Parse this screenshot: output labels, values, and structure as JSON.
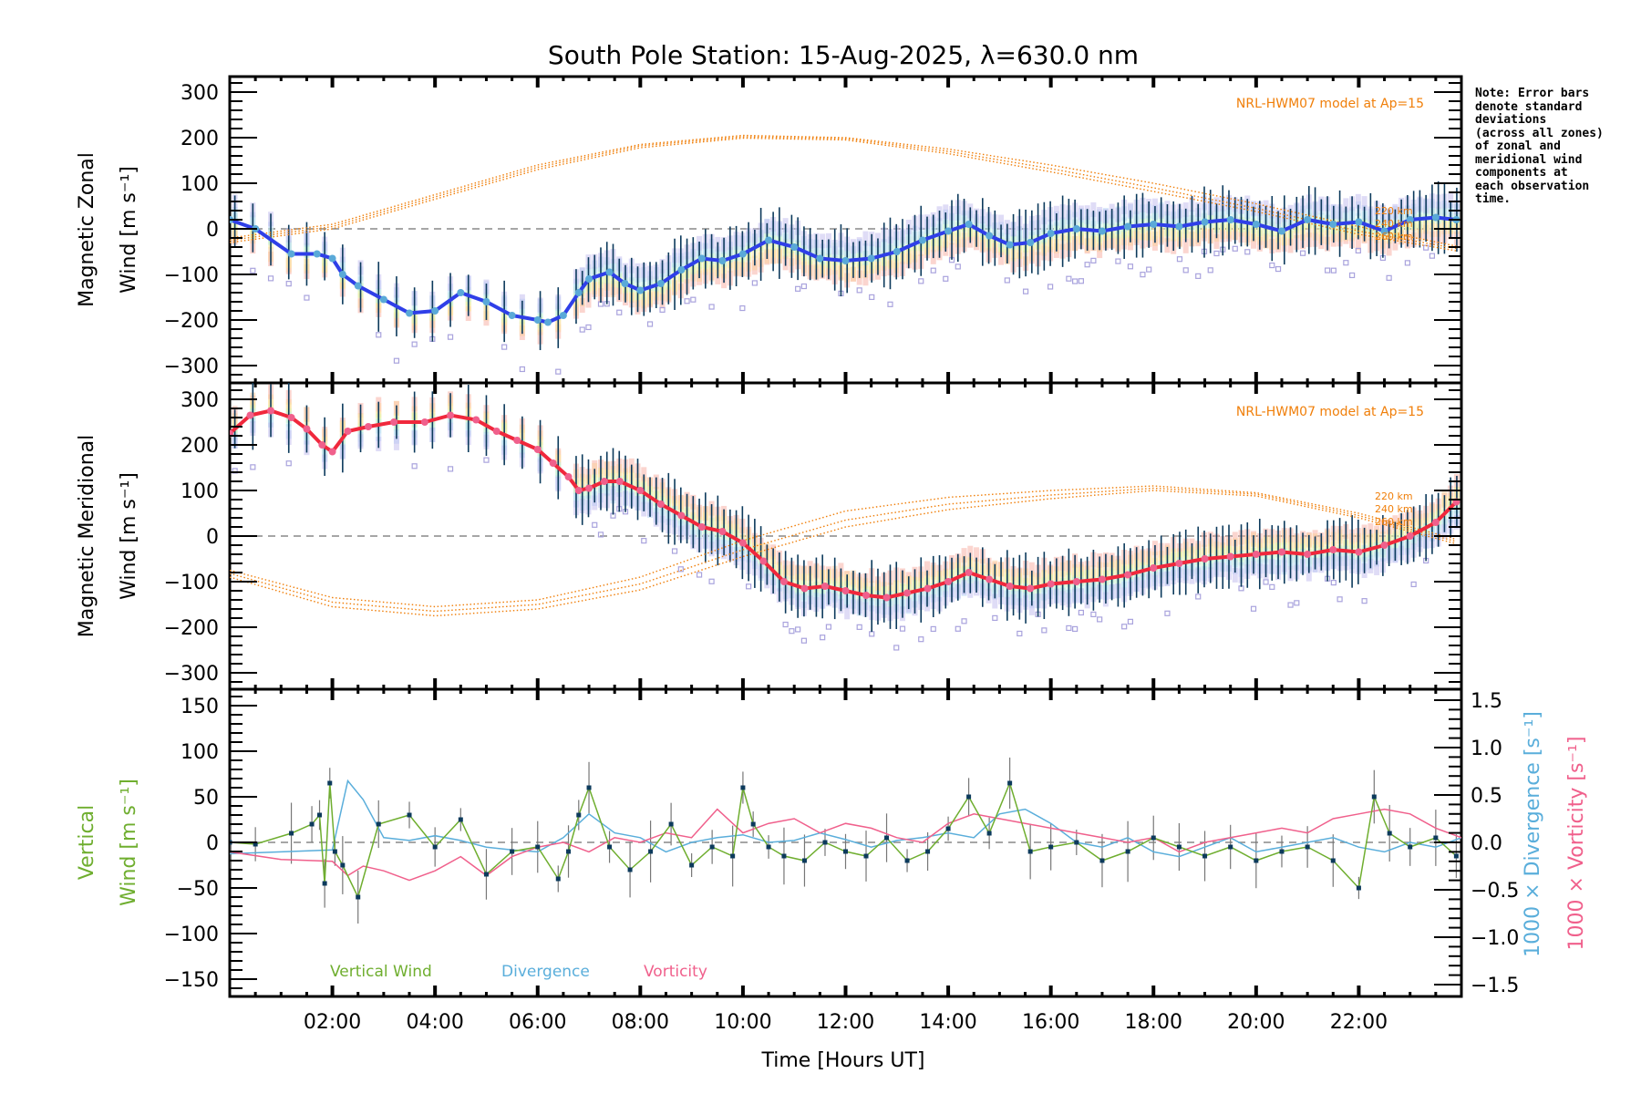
{
  "chart_data": [
    {
      "type": "line",
      "panel": "zonal",
      "title": "South Pole Station: 15-Aug-2025, λ=630.0 nm",
      "ylabel_line1": "Magnetic Zonal",
      "ylabel_line2": "Wind [m s⁻¹]",
      "ylim": [
        -335,
        335
      ],
      "yticks": [
        -300,
        -200,
        -100,
        0,
        100,
        200,
        300
      ],
      "model_label": "NRL-HWM07 model at Ap=15",
      "model_heights": [
        "220 km",
        "240 km",
        "260 km"
      ],
      "series": [
        {
          "name": "Zonal wind (mean)",
          "color": "#2f3fe8",
          "marker_color": "#5aa9d8",
          "x": [
            0.0,
            0.5,
            1.2,
            1.7,
            2.0,
            2.2,
            2.5,
            3.0,
            3.5,
            4.0,
            4.5,
            5.0,
            5.5,
            6.0,
            6.2,
            6.5,
            6.8,
            7.0,
            7.4,
            7.7,
            8.0,
            8.4,
            8.8,
            9.2,
            9.6,
            10.0,
            10.5,
            11.0,
            11.5,
            12.0,
            12.5,
            13.0,
            13.5,
            14.0,
            14.4,
            14.8,
            15.2,
            15.6,
            16.0,
            16.5,
            17.0,
            17.5,
            18.0,
            18.5,
            19.0,
            19.5,
            20.0,
            20.5,
            21.0,
            21.5,
            22.0,
            22.5,
            23.0,
            23.5,
            23.9
          ],
          "y": [
            20,
            0,
            -55,
            -55,
            -65,
            -100,
            -125,
            -155,
            -185,
            -180,
            -140,
            -160,
            -190,
            -200,
            -205,
            -190,
            -140,
            -110,
            -95,
            -120,
            -135,
            -120,
            -90,
            -65,
            -70,
            -55,
            -25,
            -40,
            -65,
            -70,
            -65,
            -50,
            -25,
            -5,
            10,
            -15,
            -35,
            -30,
            -10,
            0,
            -5,
            5,
            10,
            5,
            15,
            20,
            10,
            -5,
            20,
            10,
            15,
            -5,
            20,
            25,
            20
          ]
        },
        {
          "name": "HWM07 220 km",
          "color": "#f07f0a",
          "style": "dotted",
          "x": [
            0,
            2,
            4,
            6,
            8,
            10,
            12,
            14,
            16,
            18,
            20,
            22,
            24
          ],
          "y": [
            -20,
            10,
            75,
            140,
            185,
            205,
            200,
            175,
            140,
            100,
            55,
            5,
            -40
          ]
        },
        {
          "name": "HWM07 240 km",
          "color": "#f07f0a",
          "style": "dotted",
          "x": [
            0,
            2,
            4,
            6,
            8,
            10,
            12,
            14,
            16,
            18,
            20,
            22,
            24
          ],
          "y": [
            -25,
            5,
            70,
            135,
            182,
            202,
            198,
            170,
            132,
            90,
            45,
            -5,
            -45
          ]
        },
        {
          "name": "HWM07 260 km",
          "color": "#f07f0a",
          "style": "dotted",
          "x": [
            0,
            2,
            4,
            6,
            8,
            10,
            12,
            14,
            16,
            18,
            20,
            22,
            24
          ],
          "y": [
            -30,
            0,
            65,
            130,
            178,
            199,
            195,
            165,
            125,
            82,
            38,
            -12,
            -50
          ]
        }
      ]
    },
    {
      "type": "line",
      "panel": "meridional",
      "ylabel_line1": "Magnetic Meridional",
      "ylabel_line2": "Wind [m s⁻¹]",
      "ylim": [
        -335,
        335
      ],
      "yticks": [
        -300,
        -200,
        -100,
        0,
        100,
        200,
        300
      ],
      "model_label": "NRL-HWM07 model at Ap=15",
      "model_heights": [
        "220 km",
        "240 km",
        "260 km"
      ],
      "series": [
        {
          "name": "Meridional wind (mean)",
          "color": "#f0283c",
          "marker_color": "#f0608c",
          "x": [
            0.0,
            0.4,
            0.8,
            1.2,
            1.5,
            1.8,
            2.0,
            2.3,
            2.7,
            3.2,
            3.8,
            4.3,
            4.8,
            5.2,
            5.6,
            6.0,
            6.3,
            6.6,
            6.8,
            7.0,
            7.3,
            7.6,
            8.0,
            8.4,
            8.8,
            9.2,
            9.6,
            10.0,
            10.4,
            10.8,
            11.2,
            11.6,
            12.0,
            12.4,
            12.8,
            13.2,
            13.6,
            14.0,
            14.4,
            14.8,
            15.2,
            15.6,
            16.0,
            16.5,
            17.0,
            17.5,
            18.0,
            18.5,
            19.0,
            19.5,
            20.0,
            20.5,
            21.0,
            21.5,
            22.0,
            22.5,
            23.0,
            23.5,
            23.9
          ],
          "y": [
            225,
            265,
            275,
            260,
            235,
            200,
            185,
            230,
            240,
            250,
            250,
            265,
            255,
            230,
            210,
            190,
            160,
            130,
            100,
            105,
            120,
            120,
            100,
            70,
            45,
            20,
            10,
            -15,
            -55,
            -100,
            -115,
            -110,
            -120,
            -130,
            -135,
            -125,
            -115,
            -100,
            -80,
            -95,
            -110,
            -115,
            -105,
            -100,
            -95,
            -85,
            -70,
            -60,
            -50,
            -45,
            -40,
            -35,
            -40,
            -30,
            -35,
            -20,
            0,
            30,
            75
          ]
        },
        {
          "name": "HWM07 220 km",
          "color": "#f07f0a",
          "style": "dotted",
          "x": [
            0,
            2,
            4,
            6,
            8,
            10,
            12,
            14,
            16,
            18,
            20,
            22,
            24
          ],
          "y": [
            -75,
            -135,
            -155,
            -140,
            -90,
            -10,
            55,
            85,
            100,
            110,
            95,
            50,
            -10
          ]
        },
        {
          "name": "HWM07 240 km",
          "color": "#f07f0a",
          "style": "dotted",
          "x": [
            0,
            2,
            4,
            6,
            8,
            10,
            12,
            14,
            16,
            18,
            20,
            22,
            24
          ],
          "y": [
            -82,
            -145,
            -165,
            -150,
            -105,
            -30,
            35,
            70,
            90,
            105,
            92,
            45,
            -15
          ]
        },
        {
          "name": "HWM07 260 km",
          "color": "#f07f0a",
          "style": "dotted",
          "x": [
            0,
            2,
            4,
            6,
            8,
            10,
            12,
            14,
            16,
            18,
            20,
            22,
            24
          ],
          "y": [
            -90,
            -155,
            -175,
            -160,
            -118,
            -45,
            20,
            58,
            82,
            100,
            88,
            40,
            -20
          ]
        }
      ]
    },
    {
      "type": "line",
      "panel": "vertical",
      "xlabel": "Time [Hours UT]",
      "xticks": [
        "02:00",
        "04:00",
        "06:00",
        "08:00",
        "10:00",
        "12:00",
        "14:00",
        "16:00",
        "18:00",
        "20:00",
        "22:00"
      ],
      "xlim": [
        0,
        24
      ],
      "ylabel_line1": "Vertical",
      "ylabel_line2": "Wind [m s⁻¹]",
      "ylim": [
        -168,
        168
      ],
      "yticks": [
        -150,
        -100,
        -50,
        0,
        50,
        100,
        150
      ],
      "y2label_div": "1000 × Divergence [s⁻¹]",
      "y2label_vort": "1000 × Vorticity [s⁻¹]",
      "y2lim": [
        -1.6,
        1.6
      ],
      "y2ticks": [
        "−1.5",
        "−1.0",
        "−0.5",
        "0.0",
        "0.5",
        "1.0",
        "1.5"
      ],
      "y2tick_values": [
        -1.5,
        -1.0,
        -0.5,
        0.0,
        0.5,
        1.0,
        1.5
      ],
      "legend": [
        "Vertical Wind",
        "Divergence",
        "Vorticity"
      ],
      "series": [
        {
          "name": "Vertical Wind",
          "color": "#6fae2f",
          "axis": "left",
          "x": [
            0.0,
            0.5,
            1.2,
            1.6,
            1.75,
            1.85,
            1.95,
            2.05,
            2.2,
            2.5,
            2.9,
            3.5,
            4.0,
            4.5,
            5.0,
            5.5,
            6.0,
            6.4,
            6.6,
            6.8,
            7.0,
            7.4,
            7.8,
            8.2,
            8.6,
            9.0,
            9.4,
            9.8,
            10.0,
            10.2,
            10.5,
            10.8,
            11.2,
            11.6,
            12.0,
            12.4,
            12.8,
            13.2,
            13.6,
            14.0,
            14.4,
            14.8,
            15.2,
            15.6,
            16.0,
            16.5,
            17.0,
            17.5,
            18.0,
            18.5,
            19.0,
            19.5,
            20.0,
            20.5,
            21.0,
            21.5,
            22.0,
            22.3,
            22.6,
            23.0,
            23.5,
            23.9
          ],
          "y": [
            0,
            -2,
            10,
            20,
            30,
            -45,
            65,
            -10,
            -25,
            -60,
            20,
            30,
            -5,
            25,
            -35,
            -10,
            -5,
            -40,
            -10,
            30,
            60,
            -5,
            -30,
            -10,
            20,
            -25,
            -5,
            -15,
            60,
            20,
            -5,
            -15,
            -20,
            0,
            -10,
            -15,
            5,
            -20,
            -10,
            15,
            50,
            10,
            65,
            -10,
            -5,
            0,
            -20,
            -10,
            5,
            -5,
            -15,
            -5,
            -20,
            -10,
            -5,
            -20,
            -50,
            50,
            10,
            -5,
            5,
            -15
          ]
        },
        {
          "name": "Divergence",
          "color": "#5aaedb",
          "axis": "right",
          "x": [
            0,
            1.0,
            2.0,
            2.3,
            2.6,
            3.0,
            3.5,
            4.0,
            4.5,
            5.0,
            5.5,
            6.0,
            6.5,
            7.0,
            7.5,
            8.0,
            8.5,
            9.0,
            9.5,
            10.0,
            10.5,
            11.0,
            11.5,
            12.0,
            12.5,
            13.0,
            13.5,
            14.0,
            14.5,
            15.0,
            15.5,
            16.0,
            16.5,
            17.0,
            17.5,
            18.0,
            18.5,
            19.0,
            19.5,
            20.0,
            20.5,
            21.0,
            21.5,
            22.0,
            22.5,
            23.0,
            23.5,
            24.0
          ],
          "y": [
            -0.12,
            -0.1,
            -0.08,
            0.65,
            0.45,
            0.05,
            0.02,
            0.07,
            0.02,
            -0.05,
            -0.08,
            -0.1,
            0.05,
            0.3,
            0.1,
            0.05,
            -0.1,
            0.0,
            0.05,
            0.08,
            0.0,
            0.02,
            0.1,
            0.03,
            -0.05,
            0.02,
            0.05,
            0.1,
            0.05,
            0.3,
            0.35,
            0.2,
            0.0,
            -0.05,
            0.05,
            -0.1,
            -0.15,
            -0.05,
            0.05,
            -0.1,
            -0.05,
            0.0,
            0.05,
            -0.05,
            -0.1,
            0.0,
            -0.05,
            0.05
          ]
        },
        {
          "name": "Vorticity",
          "color": "#f0608c",
          "axis": "right",
          "x": [
            0,
            1.0,
            2.0,
            2.3,
            2.6,
            3.0,
            3.5,
            4.0,
            4.5,
            5.0,
            5.5,
            6.0,
            6.5,
            7.0,
            7.5,
            8.0,
            8.5,
            9.0,
            9.5,
            10.0,
            10.5,
            11.0,
            11.5,
            12.0,
            12.5,
            13.0,
            13.5,
            14.0,
            14.5,
            15.0,
            15.5,
            16.0,
            16.5,
            17.0,
            17.5,
            18.0,
            18.5,
            19.0,
            19.5,
            20.0,
            20.5,
            21.0,
            21.5,
            22.0,
            22.5,
            23.0,
            23.5,
            24.0
          ],
          "y": [
            -0.1,
            -0.18,
            -0.2,
            -0.35,
            -0.25,
            -0.3,
            -0.4,
            -0.3,
            -0.15,
            -0.35,
            -0.15,
            -0.05,
            0.0,
            -0.1,
            0.05,
            0.0,
            0.1,
            0.05,
            0.35,
            0.1,
            0.2,
            0.25,
            0.1,
            0.2,
            0.15,
            0.05,
            0.0,
            0.2,
            0.3,
            0.25,
            0.2,
            0.15,
            0.1,
            0.05,
            0.0,
            0.05,
            -0.1,
            0.0,
            0.05,
            0.1,
            0.15,
            0.1,
            0.25,
            0.3,
            0.35,
            0.3,
            0.15,
            0.05
          ]
        }
      ]
    }
  ],
  "note": "Note: Error bars\ndenote standard\ndeviations\n(across all zones)\nof zonal and\nmeridional wind\ncomponents at\neach observation\ntime."
}
